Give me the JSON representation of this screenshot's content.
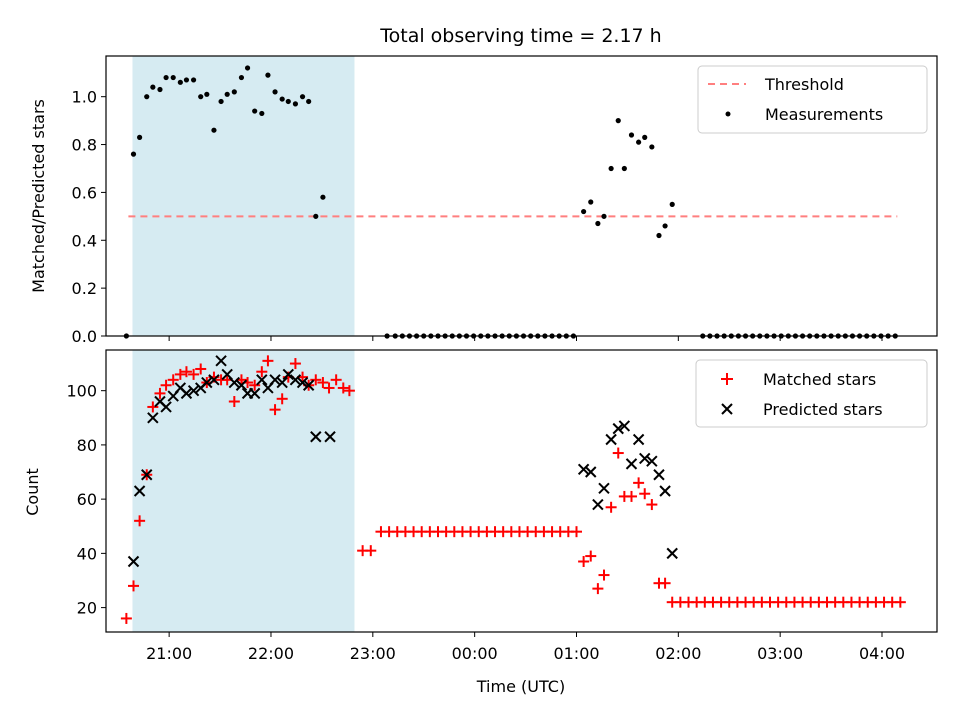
{
  "colors": {
    "threshold": "#ff7f7f",
    "measurement": "#000000",
    "matched": "#ff0000",
    "predicted": "#000000",
    "shade": "#add8e6"
  },
  "chart_data": [
    {
      "type": "scatter",
      "title": "Total observing time = 2.17 h",
      "xlabel": "",
      "ylabel": "Matched/Predicted stars",
      "ylim": [
        0,
        1.17
      ],
      "yticks": [
        "0.0",
        "0.2",
        "0.4",
        "0.6",
        "0.8",
        "1.0"
      ],
      "xlim_hours": [
        20.38,
        28.54
      ],
      "shaded_span_hours": [
        20.64,
        22.82
      ],
      "threshold": {
        "name": "Threshold",
        "value": 0.5,
        "x_hours": [
          20.6,
          28.15
        ]
      },
      "legend_position": "top-right",
      "series": [
        {
          "name": "Measurements",
          "points": [
            [
              20.58,
              0.0
            ],
            [
              20.65,
              0.76
            ],
            [
              20.71,
              0.83
            ],
            [
              20.78,
              1.0
            ],
            [
              20.84,
              1.04
            ],
            [
              20.91,
              1.03
            ],
            [
              20.97,
              1.08
            ],
            [
              21.04,
              1.08
            ],
            [
              21.11,
              1.06
            ],
            [
              21.17,
              1.07
            ],
            [
              21.24,
              1.07
            ],
            [
              21.31,
              1.0
            ],
            [
              21.37,
              1.01
            ],
            [
              21.44,
              0.86
            ],
            [
              21.51,
              0.98
            ],
            [
              21.57,
              1.01
            ],
            [
              21.64,
              1.02
            ],
            [
              21.71,
              1.08
            ],
            [
              21.77,
              1.12
            ],
            [
              21.84,
              0.94
            ],
            [
              21.91,
              0.93
            ],
            [
              21.97,
              1.09
            ],
            [
              22.04,
              1.02
            ],
            [
              22.11,
              0.99
            ],
            [
              22.17,
              0.98
            ],
            [
              22.24,
              0.97
            ],
            [
              22.31,
              1.0
            ],
            [
              22.37,
              0.98
            ],
            [
              22.44,
              0.5
            ],
            [
              22.51,
              0.58
            ],
            [
              23.14,
              0.0
            ],
            [
              23.22,
              0.0
            ],
            [
              23.29,
              0.0
            ],
            [
              23.36,
              0.0
            ],
            [
              23.43,
              0.0
            ],
            [
              23.5,
              0.0
            ],
            [
              23.57,
              0.0
            ],
            [
              23.64,
              0.0
            ],
            [
              23.71,
              0.0
            ],
            [
              23.78,
              0.0
            ],
            [
              23.85,
              0.0
            ],
            [
              23.92,
              0.0
            ],
            [
              23.99,
              0.0
            ],
            [
              24.06,
              0.0
            ],
            [
              24.13,
              0.0
            ],
            [
              24.2,
              0.0
            ],
            [
              24.27,
              0.0
            ],
            [
              24.34,
              0.0
            ],
            [
              24.41,
              0.0
            ],
            [
              24.48,
              0.0
            ],
            [
              24.55,
              0.0
            ],
            [
              24.62,
              0.0
            ],
            [
              24.69,
              0.0
            ],
            [
              24.76,
              0.0
            ],
            [
              24.83,
              0.0
            ],
            [
              24.9,
              0.0
            ],
            [
              24.97,
              0.0
            ],
            [
              25.07,
              0.52
            ],
            [
              25.14,
              0.56
            ],
            [
              25.21,
              0.47
            ],
            [
              25.27,
              0.5
            ],
            [
              25.34,
              0.7
            ],
            [
              25.41,
              0.9
            ],
            [
              25.47,
              0.7
            ],
            [
              25.54,
              0.84
            ],
            [
              25.61,
              0.81
            ],
            [
              25.67,
              0.83
            ],
            [
              25.74,
              0.79
            ],
            [
              25.81,
              0.42
            ],
            [
              25.87,
              0.46
            ],
            [
              25.94,
              0.55
            ],
            [
              26.24,
              0.0
            ],
            [
              26.31,
              0.0
            ],
            [
              26.38,
              0.0
            ],
            [
              26.45,
              0.0
            ],
            [
              26.52,
              0.0
            ],
            [
              26.59,
              0.0
            ],
            [
              26.66,
              0.0
            ],
            [
              26.73,
              0.0
            ],
            [
              26.8,
              0.0
            ],
            [
              26.87,
              0.0
            ],
            [
              26.94,
              0.0
            ],
            [
              27.01,
              0.0
            ],
            [
              27.08,
              0.0
            ],
            [
              27.15,
              0.0
            ],
            [
              27.22,
              0.0
            ],
            [
              27.29,
              0.0
            ],
            [
              27.36,
              0.0
            ],
            [
              27.43,
              0.0
            ],
            [
              27.5,
              0.0
            ],
            [
              27.57,
              0.0
            ],
            [
              27.64,
              0.0
            ],
            [
              27.71,
              0.0
            ],
            [
              27.78,
              0.0
            ],
            [
              27.85,
              0.0
            ],
            [
              27.92,
              0.0
            ],
            [
              27.99,
              0.0
            ],
            [
              28.06,
              0.0
            ],
            [
              28.13,
              0.0
            ]
          ]
        }
      ]
    },
    {
      "type": "scatter",
      "title": "",
      "xlabel": "Time (UTC)",
      "ylabel": "Count",
      "ylim": [
        11,
        115
      ],
      "yticks": [
        "20",
        "40",
        "60",
        "80",
        "100"
      ],
      "xlim_hours": [
        20.38,
        28.54
      ],
      "xticks": [
        {
          "hours": 21,
          "label": "21:00"
        },
        {
          "hours": 22,
          "label": "22:00"
        },
        {
          "hours": 23,
          "label": "23:00"
        },
        {
          "hours": 24,
          "label": "00:00"
        },
        {
          "hours": 25,
          "label": "01:00"
        },
        {
          "hours": 26,
          "label": "02:00"
        },
        {
          "hours": 27,
          "label": "03:00"
        },
        {
          "hours": 28,
          "label": "04:00"
        }
      ],
      "shaded_span_hours": [
        20.64,
        22.82
      ],
      "legend_position": "top-right",
      "series": [
        {
          "name": "Matched stars",
          "marker": "plus",
          "points": [
            [
              20.58,
              16
            ],
            [
              20.65,
              28
            ],
            [
              20.71,
              52
            ],
            [
              20.78,
              69
            ],
            [
              20.84,
              94
            ],
            [
              20.91,
              99
            ],
            [
              20.97,
              102
            ],
            [
              21.04,
              104
            ],
            [
              21.11,
              106
            ],
            [
              21.17,
              107
            ],
            [
              21.24,
              106
            ],
            [
              21.31,
              108
            ],
            [
              21.37,
              103
            ],
            [
              21.44,
              105
            ],
            [
              21.51,
              104
            ],
            [
              21.57,
              104
            ],
            [
              21.64,
              96
            ],
            [
              21.71,
              104
            ],
            [
              21.77,
              103
            ],
            [
              21.84,
              102
            ],
            [
              21.91,
              107
            ],
            [
              21.97,
              111
            ],
            [
              22.04,
              93
            ],
            [
              22.11,
              97
            ],
            [
              22.17,
              105
            ],
            [
              22.24,
              110
            ],
            [
              22.31,
              105
            ],
            [
              22.37,
              102
            ],
            [
              22.44,
              104
            ],
            [
              22.51,
              103
            ],
            [
              22.57,
              101
            ],
            [
              22.64,
              104
            ],
            [
              22.71,
              101
            ],
            [
              22.77,
              100
            ],
            [
              22.9,
              41
            ],
            [
              22.98,
              41
            ],
            [
              23.08,
              48
            ],
            [
              23.16,
              48
            ],
            [
              23.24,
              48
            ],
            [
              23.32,
              48
            ],
            [
              23.4,
              48
            ],
            [
              23.48,
              48
            ],
            [
              23.56,
              48
            ],
            [
              23.64,
              48
            ],
            [
              23.72,
              48
            ],
            [
              23.8,
              48
            ],
            [
              23.88,
              48
            ],
            [
              23.96,
              48
            ],
            [
              24.04,
              48
            ],
            [
              24.12,
              48
            ],
            [
              24.2,
              48
            ],
            [
              24.28,
              48
            ],
            [
              24.36,
              48
            ],
            [
              24.44,
              48
            ],
            [
              24.52,
              48
            ],
            [
              24.6,
              48
            ],
            [
              24.68,
              48
            ],
            [
              24.76,
              48
            ],
            [
              24.84,
              48
            ],
            [
              24.92,
              48
            ],
            [
              25.0,
              48
            ],
            [
              25.07,
              37
            ],
            [
              25.14,
              39
            ],
            [
              25.21,
              27
            ],
            [
              25.27,
              32
            ],
            [
              25.34,
              57
            ],
            [
              25.41,
              77
            ],
            [
              25.47,
              61
            ],
            [
              25.54,
              61
            ],
            [
              25.61,
              66
            ],
            [
              25.67,
              62
            ],
            [
              25.74,
              58
            ],
            [
              25.81,
              29
            ],
            [
              25.87,
              29
            ],
            [
              25.94,
              22
            ],
            [
              26.02,
              22
            ],
            [
              26.1,
              22
            ],
            [
              26.18,
              22
            ],
            [
              26.26,
              22
            ],
            [
              26.34,
              22
            ],
            [
              26.42,
              22
            ],
            [
              26.5,
              22
            ],
            [
              26.58,
              22
            ],
            [
              26.66,
              22
            ],
            [
              26.74,
              22
            ],
            [
              26.82,
              22
            ],
            [
              26.9,
              22
            ],
            [
              26.98,
              22
            ],
            [
              27.06,
              22
            ],
            [
              27.14,
              22
            ],
            [
              27.22,
              22
            ],
            [
              27.3,
              22
            ],
            [
              27.38,
              22
            ],
            [
              27.46,
              22
            ],
            [
              27.54,
              22
            ],
            [
              27.62,
              22
            ],
            [
              27.7,
              22
            ],
            [
              27.78,
              22
            ],
            [
              27.86,
              22
            ],
            [
              27.94,
              22
            ],
            [
              28.02,
              22
            ],
            [
              28.1,
              22
            ],
            [
              28.18,
              22
            ]
          ]
        },
        {
          "name": "Predicted stars",
          "marker": "x",
          "points": [
            [
              20.65,
              37
            ],
            [
              20.71,
              63
            ],
            [
              20.78,
              69
            ],
            [
              20.84,
              90
            ],
            [
              20.91,
              96
            ],
            [
              20.97,
              94
            ],
            [
              21.04,
              98
            ],
            [
              21.11,
              101
            ],
            [
              21.17,
              99
            ],
            [
              21.24,
              100
            ],
            [
              21.31,
              101
            ],
            [
              21.37,
              103
            ],
            [
              21.44,
              104
            ],
            [
              21.51,
              111
            ],
            [
              21.57,
              106
            ],
            [
              21.64,
              103
            ],
            [
              21.71,
              102
            ],
            [
              21.77,
              99
            ],
            [
              21.84,
              99
            ],
            [
              21.91,
              104
            ],
            [
              21.97,
              101
            ],
            [
              22.04,
              104
            ],
            [
              22.11,
              103
            ],
            [
              22.17,
              106
            ],
            [
              22.24,
              104
            ],
            [
              22.31,
              103
            ],
            [
              22.37,
              102
            ],
            [
              22.44,
              83
            ],
            [
              22.58,
              83
            ],
            [
              25.07,
              71
            ],
            [
              25.14,
              70
            ],
            [
              25.21,
              58
            ],
            [
              25.27,
              64
            ],
            [
              25.34,
              82
            ],
            [
              25.41,
              86
            ],
            [
              25.47,
              87
            ],
            [
              25.54,
              73
            ],
            [
              25.61,
              82
            ],
            [
              25.67,
              75
            ],
            [
              25.74,
              74
            ],
            [
              25.81,
              69
            ],
            [
              25.87,
              63
            ],
            [
              25.94,
              40
            ]
          ]
        }
      ]
    }
  ]
}
